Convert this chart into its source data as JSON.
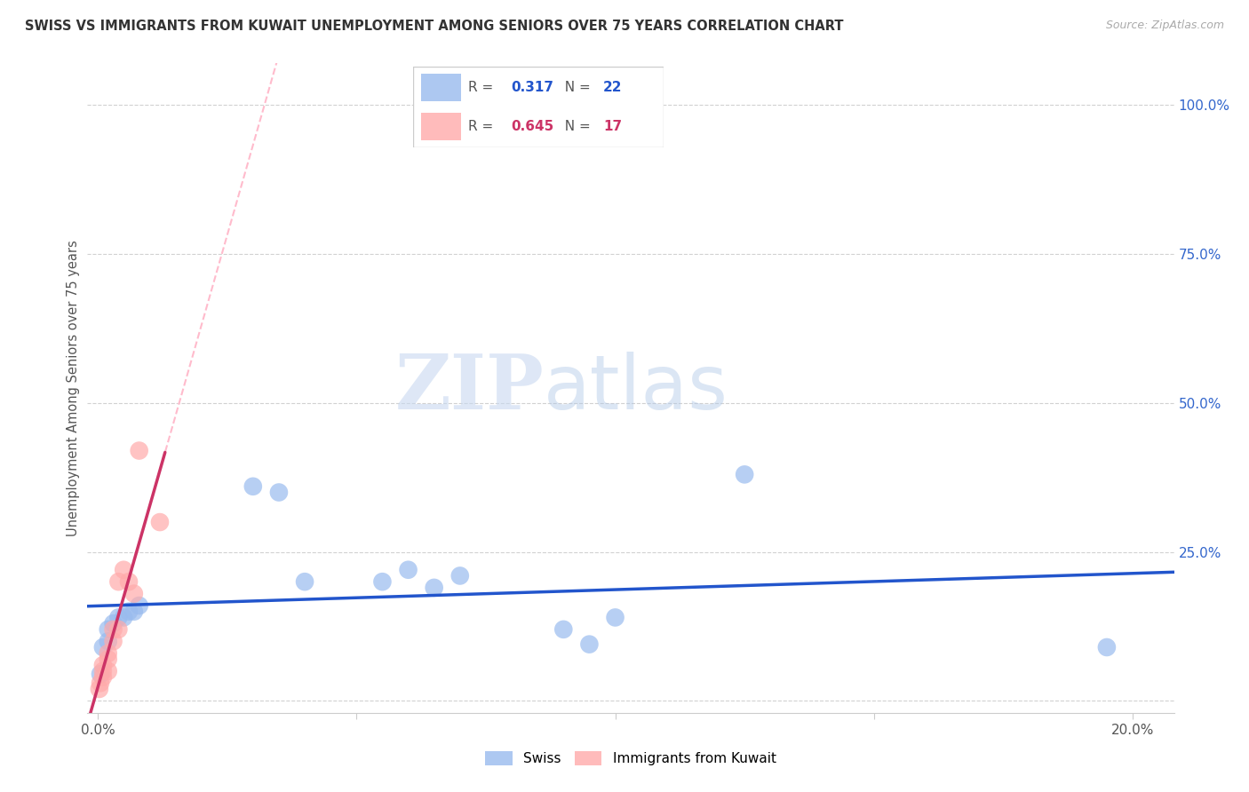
{
  "title": "SWISS VS IMMIGRANTS FROM KUWAIT UNEMPLOYMENT AMONG SENIORS OVER 75 YEARS CORRELATION CHART",
  "source": "Source: ZipAtlas.com",
  "ylabel": "Unemployment Among Seniors over 75 years",
  "background_color": "#ffffff",
  "watermark_zip": "ZIP",
  "watermark_atlas": "atlas",
  "swiss_color": "#99bbee",
  "kuwait_color": "#ffaaaa",
  "swiss_line_color": "#2255cc",
  "kuwait_line_color": "#cc3366",
  "kuwait_dashed_color": "#ffbbcc",
  "R_swiss": "0.317",
  "N_swiss": "22",
  "R_kuwait": "0.645",
  "N_kuwait": "17",
  "xlim": [
    -0.002,
    0.208
  ],
  "ylim": [
    -0.02,
    1.07
  ],
  "xticks": [
    0.0,
    0.05,
    0.1,
    0.15,
    0.2
  ],
  "xtick_labels": [
    "0.0%",
    "",
    "",
    "",
    "20.0%"
  ],
  "yticks": [
    0.0,
    0.25,
    0.5,
    0.75,
    1.0
  ],
  "ytick_labels_right": [
    "",
    "25.0%",
    "50.0%",
    "75.0%",
    "100.0%"
  ],
  "swiss_x": [
    0.0005,
    0.001,
    0.002,
    0.002,
    0.003,
    0.004,
    0.005,
    0.006,
    0.007,
    0.008,
    0.03,
    0.035,
    0.04,
    0.055,
    0.06,
    0.065,
    0.07,
    0.09,
    0.095,
    0.1,
    0.125,
    0.195
  ],
  "swiss_y": [
    0.045,
    0.09,
    0.1,
    0.12,
    0.13,
    0.14,
    0.14,
    0.15,
    0.15,
    0.16,
    0.36,
    0.35,
    0.2,
    0.2,
    0.22,
    0.19,
    0.21,
    0.12,
    0.095,
    0.14,
    0.38,
    0.09
  ],
  "kuwait_x": [
    0.0003,
    0.0005,
    0.001,
    0.001,
    0.001,
    0.002,
    0.002,
    0.002,
    0.003,
    0.003,
    0.004,
    0.004,
    0.005,
    0.006,
    0.007,
    0.008,
    0.012
  ],
  "kuwait_y": [
    0.02,
    0.03,
    0.04,
    0.05,
    0.06,
    0.05,
    0.07,
    0.08,
    0.1,
    0.12,
    0.12,
    0.2,
    0.22,
    0.2,
    0.18,
    0.42,
    0.3
  ]
}
